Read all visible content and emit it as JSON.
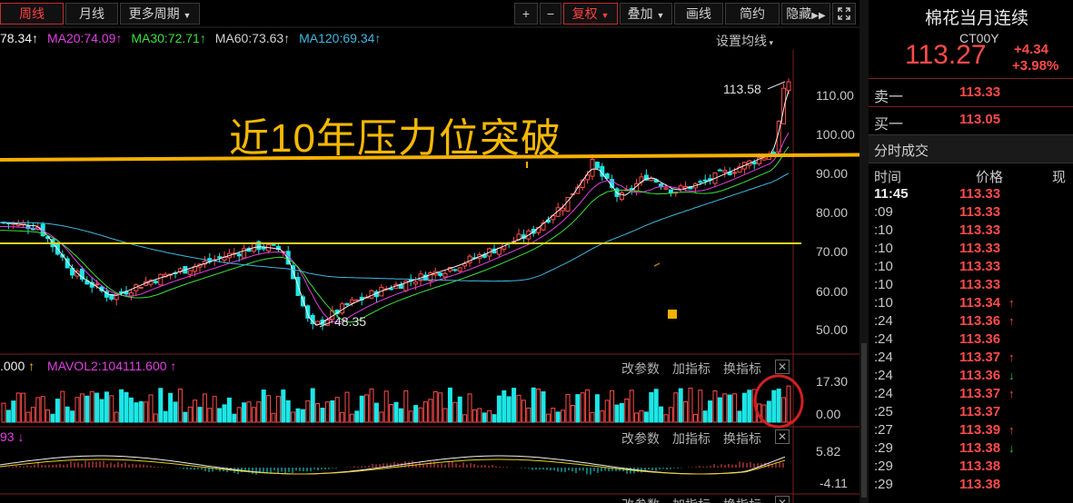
{
  "toolbar": {
    "period_week": "周线",
    "period_month": "月线",
    "period_more": "更多周期",
    "plus": "+",
    "minus": "−",
    "fuquan": "复权",
    "overlay": "叠加",
    "draw": "画线",
    "simple": "简约",
    "hide": "隐藏"
  },
  "ma_line": {
    "ma10": "78.34",
    "ma20": "MA20:74.09",
    "ma30": "MA30:72.71",
    "ma60": "MA60:73.63",
    "ma120": "MA120:69.34",
    "settings": "设置均线"
  },
  "annotation": {
    "headline": "近10年压力位突破",
    "high_label": "113.58",
    "low_label": "48.35"
  },
  "price_axis": [
    "110.00",
    "100.00",
    "90.00",
    "80.00",
    "70.00",
    "60.00",
    "50.00"
  ],
  "vol_panel": {
    "header_a": ".000",
    "header_b": "MAVOL2:104111.600",
    "btn_params": "改参数",
    "btn_add": "加指标",
    "btn_switch": "换指标",
    "axis_top": "17.30",
    "axis_bottom": "0.00"
  },
  "macd_panel": {
    "header": "93",
    "btn_params": "改参数",
    "btn_add": "加指标",
    "btn_switch": "换指标",
    "axis_top": "5.82",
    "axis_bottom": "-4.11"
  },
  "third_panel": {
    "btn_params": "改参数",
    "btn_add": "加指标",
    "btn_switch": "换指标"
  },
  "quote": {
    "name": "棉花当月连续",
    "code": "CT00Y",
    "price": "113.27",
    "change": "+4.34",
    "change_pct": "+3.98%",
    "sell_label": "卖一",
    "sell_price": "113.33",
    "buy_label": "买一",
    "buy_price": "113.05",
    "trades_tab": "分时成交",
    "col_time": "时间",
    "col_price": "价格",
    "col_vol": "现"
  },
  "ticks": [
    {
      "time": "11:45",
      "price": "113.33",
      "dir": ""
    },
    {
      "time": ":09",
      "price": "113.33",
      "dir": ""
    },
    {
      "time": ":10",
      "price": "113.33",
      "dir": ""
    },
    {
      "time": ":10",
      "price": "113.33",
      "dir": ""
    },
    {
      "time": ":10",
      "price": "113.33",
      "dir": ""
    },
    {
      "time": ":10",
      "price": "113.33",
      "dir": ""
    },
    {
      "time": ":10",
      "price": "113.34",
      "dir": "up"
    },
    {
      "time": ":24",
      "price": "113.36",
      "dir": "up"
    },
    {
      "time": ":24",
      "price": "113.36",
      "dir": ""
    },
    {
      "time": ":24",
      "price": "113.37",
      "dir": "up"
    },
    {
      "time": ":24",
      "price": "113.36",
      "dir": "down"
    },
    {
      "time": ":24",
      "price": "113.37",
      "dir": "up"
    },
    {
      "time": ":25",
      "price": "113.37",
      "dir": ""
    },
    {
      "time": ":27",
      "price": "113.39",
      "dir": "up"
    },
    {
      "time": ":29",
      "price": "113.38",
      "dir": "down"
    },
    {
      "time": ":29",
      "price": "113.38",
      "dir": ""
    },
    {
      "time": ":29",
      "price": "113.38",
      "dir": ""
    }
  ],
  "colors": {
    "up": "#ff4b4b",
    "down": "#1de6e6",
    "ma10": "#f0f0f0",
    "ma20": "#e040e0",
    "ma30": "#3ce03c",
    "ma60": "#d0d0d0",
    "ma120": "#40b8e0",
    "headline": "#f5b800"
  },
  "icons": {
    "fast_forward": "fast-forward-icon",
    "fullscreen": "fullscreen-icon"
  }
}
